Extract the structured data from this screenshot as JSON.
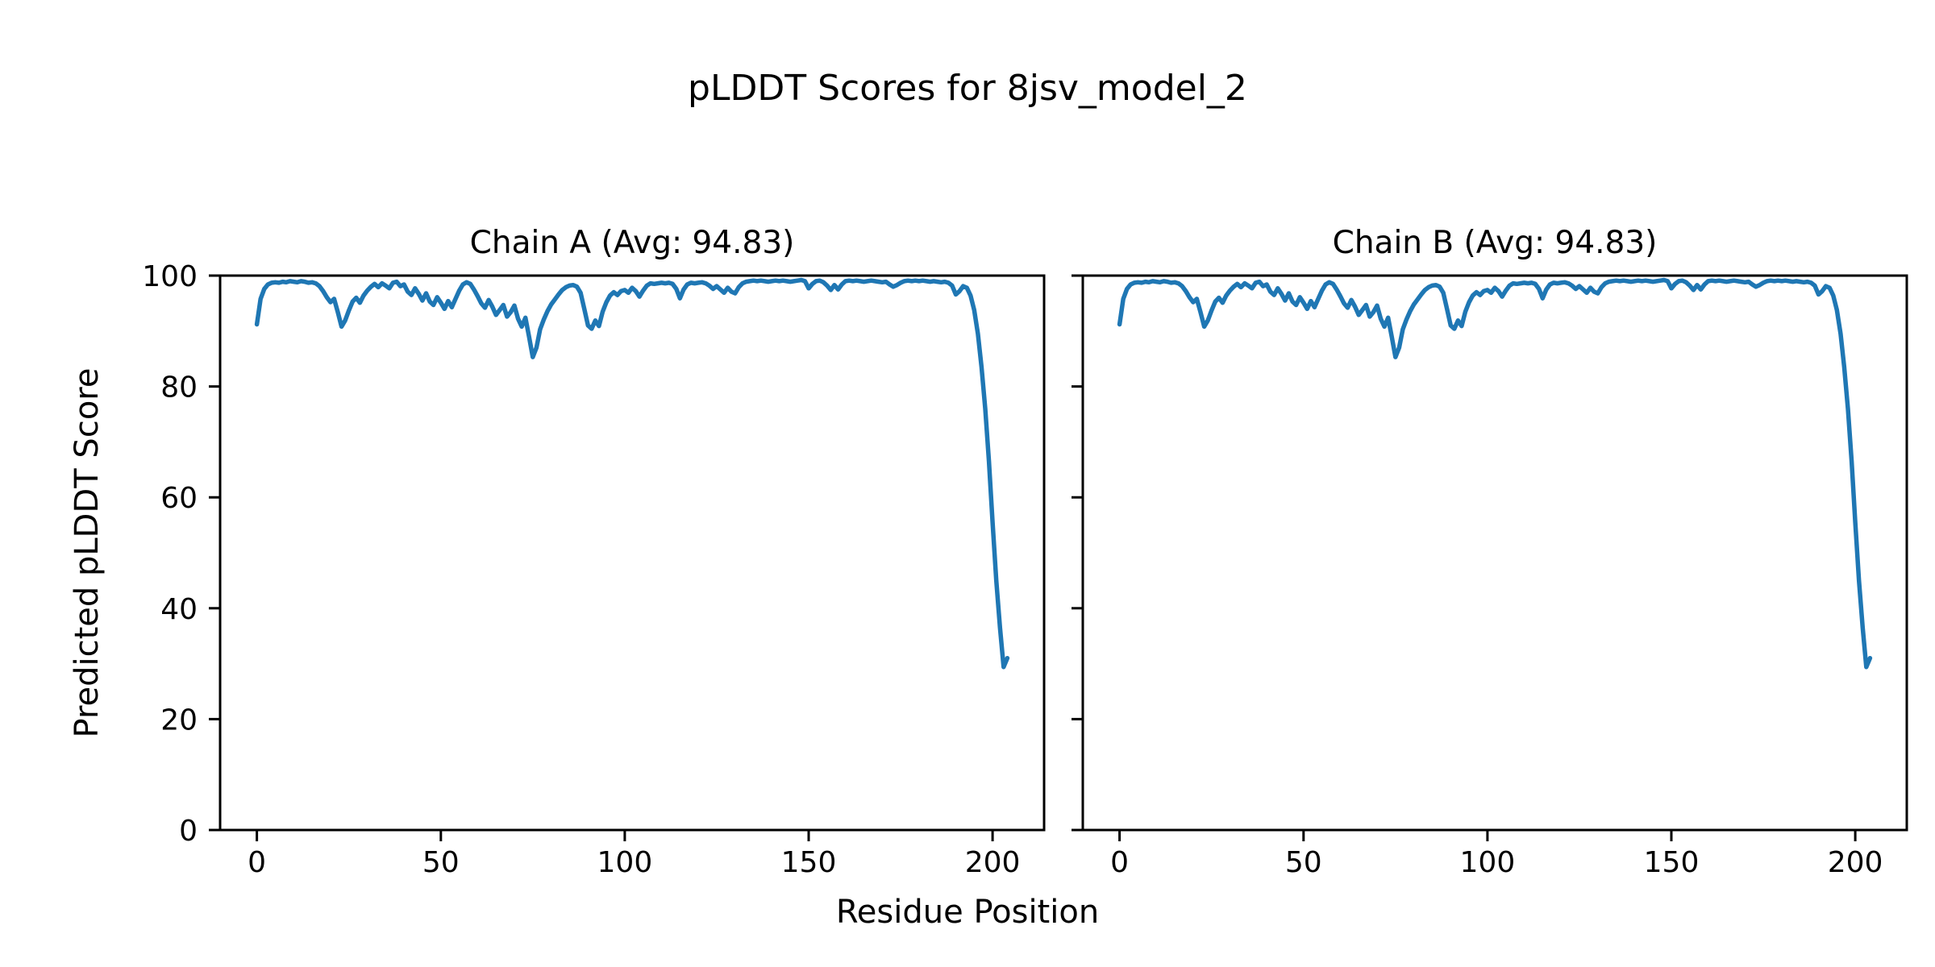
{
  "figure": {
    "title": "pLDDT Scores for 8jsv_model_2",
    "xlabel": "Residue Position",
    "ylabel": "Predicted pLDDT Score"
  },
  "chart_data": {
    "type": "line",
    "title": "pLDDT Scores for 8jsv_model_2",
    "xlabel": "Residue Position",
    "ylabel": "Predicted pLDDT Score",
    "line_color": "#1f77b4",
    "background": "#ffffff",
    "grid": false,
    "legend_position": "none",
    "xlim": [
      -10,
      214
    ],
    "ylim": [
      0,
      100
    ],
    "xticks": [
      0,
      50,
      100,
      150,
      200
    ],
    "yticks": [
      0,
      20,
      40,
      60,
      80,
      100
    ],
    "subplots": [
      {
        "title": "Chain A (Avg: 94.83)",
        "name": "Chain A",
        "avg": 94.83
      },
      {
        "title": "Chain B (Avg: 94.83)",
        "name": "Chain B",
        "avg": 94.83
      }
    ],
    "series": [
      {
        "name": "Chain A",
        "values": [
          91.2,
          95.8,
          97.6,
          98.4,
          98.7,
          98.8,
          98.7,
          98.9,
          98.8,
          99.0,
          98.9,
          98.8,
          99.0,
          98.9,
          98.7,
          98.8,
          98.6,
          98.1,
          97.2,
          96.1,
          95.2,
          95.8,
          93.4,
          90.8,
          91.9,
          93.7,
          95.3,
          96.0,
          95.1,
          96.4,
          97.3,
          98.0,
          98.5,
          97.9,
          98.6,
          98.2,
          97.7,
          98.7,
          98.9,
          98.1,
          98.4,
          97.1,
          96.5,
          97.7,
          96.7,
          95.5,
          96.8,
          95.3,
          94.7,
          96.1,
          95.1,
          94.0,
          95.4,
          94.3,
          95.8,
          97.3,
          98.4,
          98.8,
          98.5,
          97.5,
          96.3,
          95.0,
          94.2,
          95.6,
          94.4,
          92.9,
          93.8,
          94.7,
          92.6,
          93.4,
          94.6,
          92.2,
          90.8,
          92.4,
          88.9,
          85.3,
          87.0,
          90.3,
          92.1,
          93.6,
          94.8,
          95.7,
          96.6,
          97.4,
          97.9,
          98.2,
          98.3,
          98.0,
          96.9,
          94.0,
          91.0,
          90.4,
          91.9,
          90.9,
          93.5,
          95.2,
          96.4,
          97.0,
          96.5,
          97.2,
          97.4,
          96.9,
          97.8,
          97.2,
          96.2,
          97.3,
          98.2,
          98.6,
          98.5,
          98.6,
          98.7,
          98.6,
          98.7,
          98.5,
          97.6,
          95.9,
          97.5,
          98.4,
          98.7,
          98.6,
          98.7,
          98.8,
          98.6,
          98.2,
          97.6,
          98.1,
          97.5,
          96.9,
          97.8,
          97.1,
          96.8,
          97.9,
          98.6,
          98.9,
          99.0,
          99.1,
          99.0,
          99.1,
          99.0,
          98.9,
          99.0,
          99.1,
          99.0,
          99.1,
          99.0,
          98.9,
          99.0,
          99.1,
          99.2,
          99.0,
          97.7,
          98.5,
          99.0,
          99.1,
          98.8,
          98.2,
          97.4,
          98.3,
          97.5,
          98.4,
          99.0,
          99.1,
          99.0,
          99.1,
          99.0,
          98.9,
          99.0,
          99.1,
          99.0,
          98.9,
          98.8,
          98.9,
          98.4,
          98.0,
          98.3,
          98.7,
          99.0,
          99.1,
          99.0,
          99.1,
          99.0,
          99.1,
          99.0,
          98.9,
          99.0,
          98.9,
          98.8,
          98.9,
          98.7,
          98.2,
          96.6,
          97.2,
          98.1,
          97.8,
          96.4,
          93.8,
          89.5,
          83.5,
          76.0,
          66.5,
          55.5,
          45.0,
          36.5,
          29.4,
          31.0
        ]
      },
      {
        "name": "Chain B",
        "values": [
          91.2,
          95.8,
          97.6,
          98.4,
          98.7,
          98.8,
          98.7,
          98.9,
          98.8,
          99.0,
          98.9,
          98.8,
          99.0,
          98.9,
          98.7,
          98.8,
          98.6,
          98.1,
          97.2,
          96.1,
          95.2,
          95.8,
          93.4,
          90.8,
          91.9,
          93.7,
          95.3,
          96.0,
          95.1,
          96.4,
          97.3,
          98.0,
          98.5,
          97.9,
          98.6,
          98.2,
          97.7,
          98.7,
          98.9,
          98.1,
          98.4,
          97.1,
          96.5,
          97.7,
          96.7,
          95.5,
          96.8,
          95.3,
          94.7,
          96.1,
          95.1,
          94.0,
          95.4,
          94.3,
          95.8,
          97.3,
          98.4,
          98.8,
          98.5,
          97.5,
          96.3,
          95.0,
          94.2,
          95.6,
          94.4,
          92.9,
          93.8,
          94.7,
          92.6,
          93.4,
          94.6,
          92.2,
          90.8,
          92.4,
          88.9,
          85.3,
          87.0,
          90.3,
          92.1,
          93.6,
          94.8,
          95.7,
          96.6,
          97.4,
          97.9,
          98.2,
          98.3,
          98.0,
          96.9,
          94.0,
          91.0,
          90.4,
          91.9,
          90.9,
          93.5,
          95.2,
          96.4,
          97.0,
          96.5,
          97.2,
          97.4,
          96.9,
          97.8,
          97.2,
          96.2,
          97.3,
          98.2,
          98.6,
          98.5,
          98.6,
          98.7,
          98.6,
          98.7,
          98.5,
          97.6,
          95.9,
          97.5,
          98.4,
          98.7,
          98.6,
          98.7,
          98.8,
          98.6,
          98.2,
          97.6,
          98.1,
          97.5,
          96.9,
          97.8,
          97.1,
          96.8,
          97.9,
          98.6,
          98.9,
          99.0,
          99.1,
          99.0,
          99.1,
          99.0,
          98.9,
          99.0,
          99.1,
          99.0,
          99.1,
          99.0,
          98.9,
          99.0,
          99.1,
          99.2,
          99.0,
          97.7,
          98.5,
          99.0,
          99.1,
          98.8,
          98.2,
          97.4,
          98.3,
          97.5,
          98.4,
          99.0,
          99.1,
          99.0,
          99.1,
          99.0,
          98.9,
          99.0,
          99.1,
          99.0,
          98.9,
          98.8,
          98.9,
          98.4,
          98.0,
          98.3,
          98.7,
          99.0,
          99.1,
          99.0,
          99.1,
          99.0,
          99.1,
          99.0,
          98.9,
          99.0,
          98.9,
          98.8,
          98.9,
          98.7,
          98.2,
          96.6,
          97.2,
          98.1,
          97.8,
          96.4,
          93.8,
          89.5,
          83.5,
          76.0,
          66.5,
          55.5,
          45.0,
          36.5,
          29.4,
          31.0
        ]
      }
    ]
  }
}
